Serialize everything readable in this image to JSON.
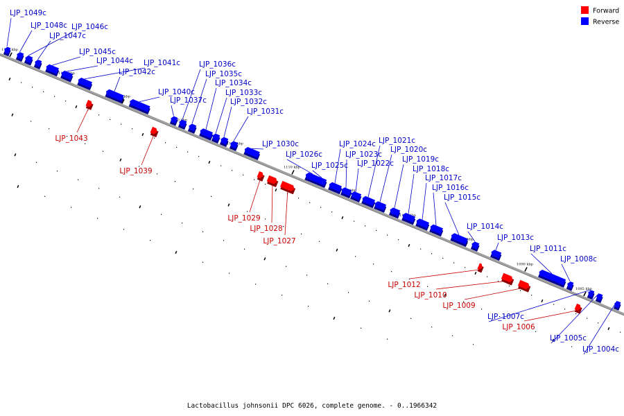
{
  "colors": {
    "forward": "#ff0000",
    "forward_label": "#c80000",
    "reverse": "#0000ff",
    "reverse_label": "#0000c8",
    "axis": "#a0a0a0",
    "dots": "#000000"
  },
  "legend": {
    "forward": "Forward",
    "reverse": "Reverse"
  },
  "caption": "Lactobacillus johnsonii DPC 6026, complete genome. - 0..1966342",
  "ticks": [
    "1135 kbp",
    "1130 kbp",
    "1125 kbp",
    "1120 kbp",
    "1115 kbp",
    "1110 kbp",
    "1105 kbp",
    "1100 kbp",
    "1095 kbp",
    "1090 kbp",
    "1085 kbp"
  ],
  "genes": [
    {
      "label": "LJP_1049c",
      "strand": "reverse"
    },
    {
      "label": "LJP_1048c",
      "strand": "reverse"
    },
    {
      "label": "LJP_1046c",
      "strand": "reverse"
    },
    {
      "label": "LJP_1047c",
      "strand": "reverse"
    },
    {
      "label": "LJP_1045c",
      "strand": "reverse"
    },
    {
      "label": "LJP_1044c",
      "strand": "reverse"
    },
    {
      "label": "LJP_1041c",
      "strand": "reverse"
    },
    {
      "label": "LJP_1042c",
      "strand": "reverse"
    },
    {
      "label": "LJP_1043",
      "strand": "forward"
    },
    {
      "label": "LJP_1040c",
      "strand": "reverse"
    },
    {
      "label": "LJP_1039",
      "strand": "forward"
    },
    {
      "label": "LJP_1037c",
      "strand": "reverse"
    },
    {
      "label": "LJP_1036c",
      "strand": "reverse"
    },
    {
      "label": "LJP_1035c",
      "strand": "reverse"
    },
    {
      "label": "LJP_1034c",
      "strand": "reverse"
    },
    {
      "label": "LJP_1033c",
      "strand": "reverse"
    },
    {
      "label": "LJP_1032c",
      "strand": "reverse"
    },
    {
      "label": "LJP_1031c",
      "strand": "reverse"
    },
    {
      "label": "LJP_1030c",
      "strand": "reverse"
    },
    {
      "label": "LJP_1029",
      "strand": "forward"
    },
    {
      "label": "LJP_1028",
      "strand": "forward"
    },
    {
      "label": "LJP_1027",
      "strand": "forward"
    },
    {
      "label": "LJP_1026c",
      "strand": "reverse"
    },
    {
      "label": "LJP_1025c",
      "strand": "reverse"
    },
    {
      "label": "LJP_1024c",
      "strand": "reverse"
    },
    {
      "label": "LJP_1023c",
      "strand": "reverse"
    },
    {
      "label": "LJP_1022c",
      "strand": "reverse"
    },
    {
      "label": "LJP_1021c",
      "strand": "reverse"
    },
    {
      "label": "LJP_1020c",
      "strand": "reverse"
    },
    {
      "label": "LJP_1019c",
      "strand": "reverse"
    },
    {
      "label": "LJP_1018c",
      "strand": "reverse"
    },
    {
      "label": "LJP_1017c",
      "strand": "reverse"
    },
    {
      "label": "LJP_1016c",
      "strand": "reverse"
    },
    {
      "label": "LJP_1015c",
      "strand": "reverse"
    },
    {
      "label": "LJP_1014c",
      "strand": "reverse"
    },
    {
      "label": "LJP_1013c",
      "strand": "reverse"
    },
    {
      "label": "LJP_1011c",
      "strand": "reverse"
    },
    {
      "label": "LJP_1012",
      "strand": "forward"
    },
    {
      "label": "LJP_1010",
      "strand": "forward"
    },
    {
      "label": "LJP_1009",
      "strand": "forward"
    },
    {
      "label": "LJP_1008c",
      "strand": "reverse"
    },
    {
      "label": "LJP_1007c",
      "strand": "reverse"
    },
    {
      "label": "LJP_1006",
      "strand": "forward"
    },
    {
      "label": "LJP_1005c",
      "strand": "reverse"
    },
    {
      "label": "LJP_1004c",
      "strand": "reverse"
    }
  ]
}
